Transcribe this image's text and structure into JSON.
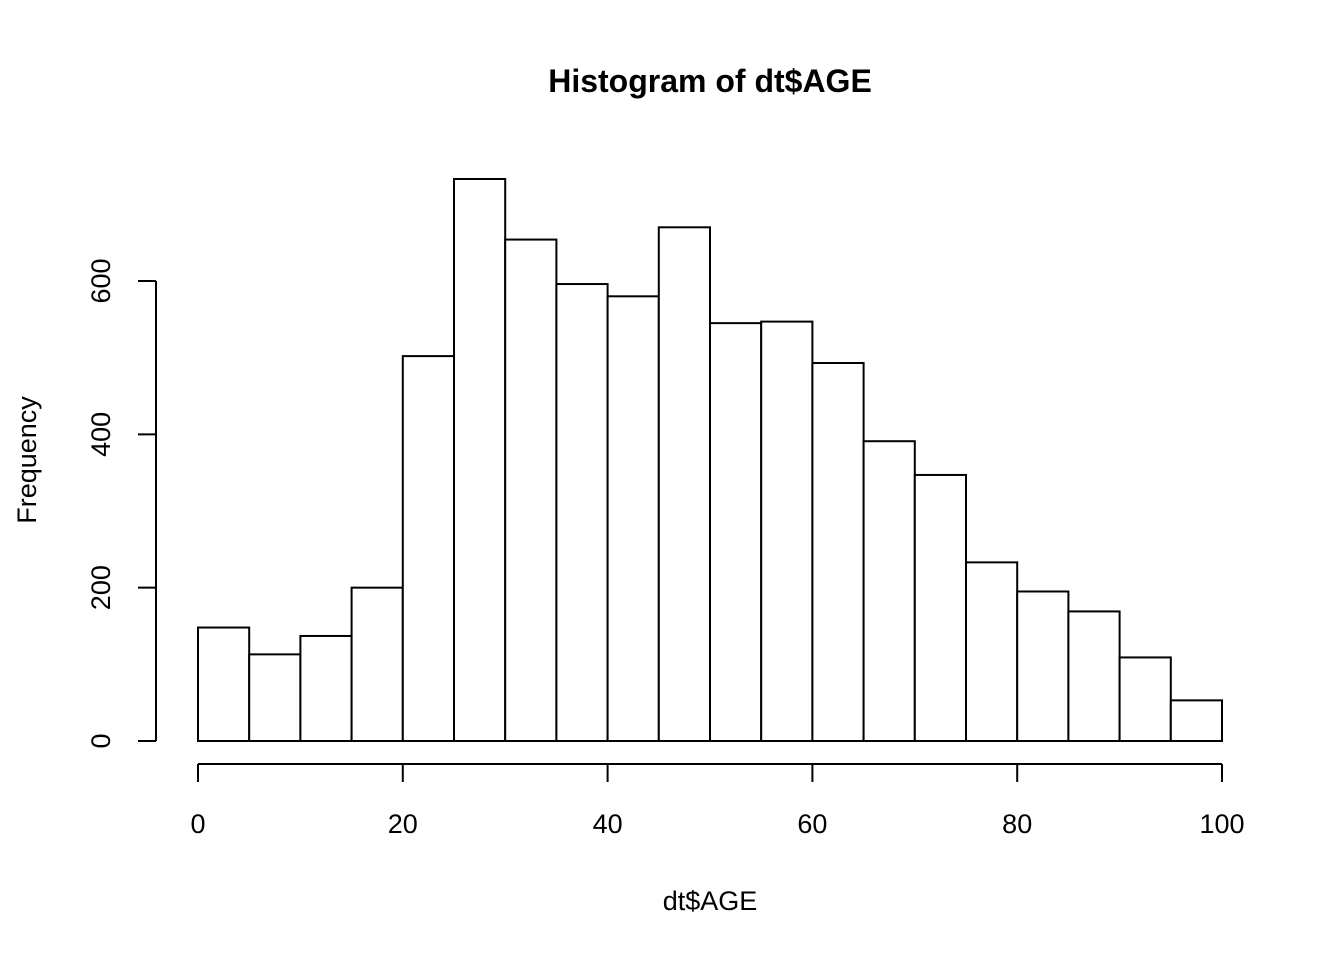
{
  "chart_data": {
    "type": "bar",
    "title": "Histogram of dt$AGE",
    "xlabel": "dt$AGE",
    "ylabel": "Frequency",
    "bin_edges": [
      0,
      5,
      10,
      15,
      20,
      25,
      30,
      35,
      40,
      45,
      50,
      55,
      60,
      65,
      70,
      75,
      80,
      85,
      90,
      95,
      100
    ],
    "values": [
      148,
      113,
      137,
      200,
      502,
      733,
      654,
      596,
      580,
      670,
      545,
      547,
      493,
      391,
      347,
      233,
      195,
      169,
      109,
      53
    ],
    "xlim": [
      0,
      100
    ],
    "ylim": [
      0,
      733
    ],
    "x_ticks": [
      0,
      20,
      40,
      60,
      80,
      100
    ],
    "y_ticks": [
      0,
      200,
      400,
      600
    ],
    "grid": false,
    "legend": "none",
    "bar_fill": "#ffffff",
    "bar_stroke": "#000000"
  }
}
